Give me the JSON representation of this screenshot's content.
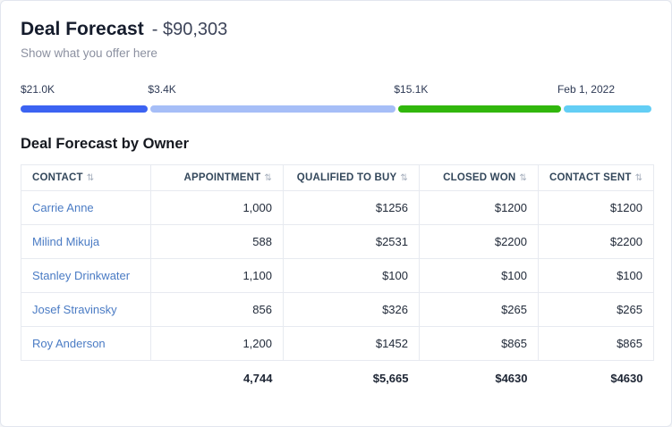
{
  "header": {
    "title": "Deal Forecast",
    "amount": "- $90,303",
    "subtitle": "Show what you offer here"
  },
  "icons": {
    "sort": "⇅"
  },
  "progress": {
    "segments": [
      {
        "label": "$21.0K",
        "color": "#3c63f2",
        "width_pct": 20.2
      },
      {
        "label": "$3.4K",
        "color": "#a6bef7",
        "width_pct": 39.0
      },
      {
        "label": "$15.1K",
        "color": "#31b70c",
        "width_pct": 25.9
      },
      {
        "label": "Feb 1, 2022",
        "color": "#63cef5",
        "width_pct": 14.0
      }
    ]
  },
  "section": {
    "title": "Deal Forecast by Owner"
  },
  "table": {
    "columns": [
      {
        "label": "CONTACT"
      },
      {
        "label": "APPOINTMENT"
      },
      {
        "label": "QUALIFIED TO BUY"
      },
      {
        "label": "CLOSED WON"
      },
      {
        "label": "CONTACT SENT"
      }
    ],
    "rows": [
      [
        "Carrie Anne",
        "1,000",
        "$1256",
        "$1200",
        "$1200"
      ],
      [
        "Milind Mikuja",
        "588",
        "$2531",
        "$2200",
        "$2200"
      ],
      [
        "Stanley Drinkwater",
        "1,100",
        "$100",
        "$100",
        "$100"
      ],
      [
        "Josef Stravinsky",
        "856",
        "$326",
        "$265",
        "$265"
      ],
      [
        "Roy Anderson",
        "1,200",
        "$1452",
        "$865",
        "$865"
      ]
    ],
    "totals": [
      "",
      "4,744",
      "$5,665",
      "$4630",
      "$4630"
    ]
  }
}
